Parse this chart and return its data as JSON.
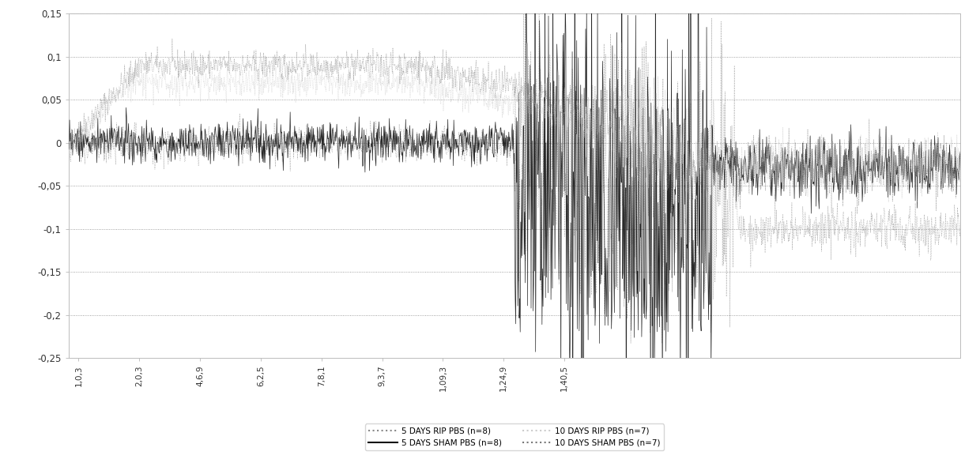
{
  "title": "",
  "ylabel": "",
  "xlabel": "",
  "ylim": [
    -0.25,
    0.15
  ],
  "yticks": [
    0.15,
    0.1,
    0.05,
    0,
    -0.05,
    -0.1,
    -0.15,
    -0.2,
    -0.25
  ],
  "ytick_labels": [
    "0,15",
    "0,1",
    "0,05",
    "0",
    "-0,05",
    "-0,1",
    "-0,15",
    "-0,2",
    "-0,25"
  ],
  "xtick_labels": [
    "1,0,3",
    "2,0,3",
    "4,6,9",
    "6,2,5",
    "7,8,1",
    "9,3,7",
    "1,09,3",
    "1,24,9",
    "1,40,5"
  ],
  "background_color": "#ffffff",
  "plot_bg_color": "#ffffff",
  "grid_color": "#aaaaaa",
  "legend_entries": [
    {
      "label": "5 DAYS RIP PBS (n=8)",
      "color": "#999999",
      "style": "dotted"
    },
    {
      "label": "10 DAYS RIP PBS (n=7)",
      "color": "#bbbbbb",
      "style": "dotted"
    },
    {
      "label": "5 DAYS SHAM PBS (n=8)",
      "color": "#111111",
      "style": "solid"
    },
    {
      "label": "10 DAYS SHAM PBS (n=7)",
      "color": "#555555",
      "style": "dotted"
    }
  ],
  "n_points": 1800,
  "seed": 42
}
